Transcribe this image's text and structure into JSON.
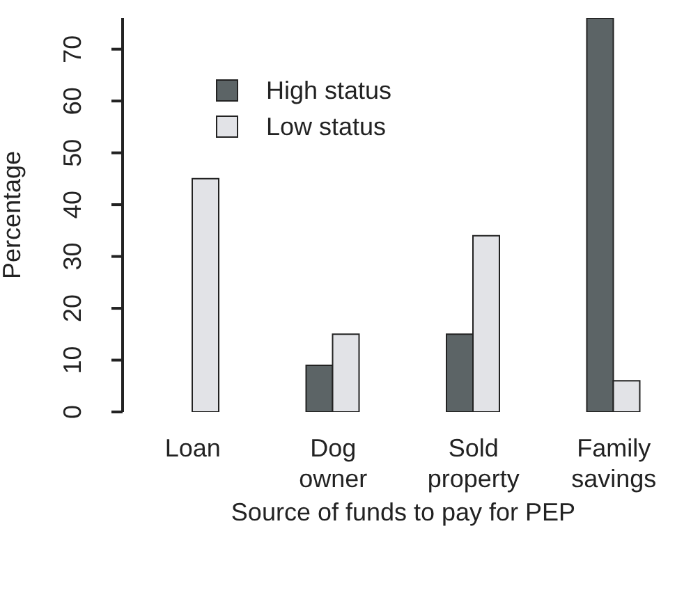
{
  "chart_data": {
    "type": "bar",
    "xlabel": "Source of funds to pay for PEP",
    "ylabel": "Percentage",
    "categories": [
      "Loan",
      "Dog\nowner",
      "Sold\nproperty",
      "Family\nsavings"
    ],
    "series": [
      {
        "name": "High status",
        "color": "#5c6466",
        "values": [
          0,
          9,
          15,
          76
        ]
      },
      {
        "name": "Low status",
        "color": "#e2e3e7",
        "values": [
          45,
          15,
          34,
          6
        ]
      }
    ],
    "ylim": [
      0,
      76
    ],
    "yticks": [
      0,
      10,
      20,
      30,
      40,
      50,
      60,
      70
    ],
    "grid": false,
    "legend": "top left"
  }
}
